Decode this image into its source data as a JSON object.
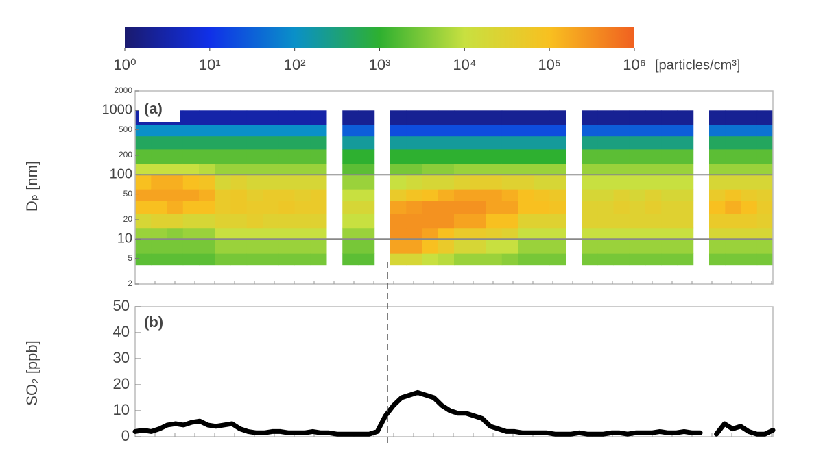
{
  "chart_data": [
    {
      "type": "heatmap",
      "panel_label": "(a)",
      "y_label": "Dₚ [nm]",
      "ylog": true,
      "ylim": [
        2,
        2000
      ],
      "yticks": [
        2,
        5,
        10,
        20,
        50,
        100,
        200,
        500,
        1000,
        2000
      ],
      "reference_lines": [
        10,
        100
      ],
      "ybins": [
        4,
        6,
        10,
        15,
        25,
        40,
        60,
        100,
        150,
        250,
        400,
        600,
        1000
      ],
      "values": [
        [
          2000.0,
          3000.0,
          5000.0,
          20000.0,
          100000.0,
          200000.0,
          100000.0,
          10000.0,
          2000.0,
          500.0,
          100.0,
          3
        ],
        [
          2000.0,
          3000.0,
          5000.0,
          30000.0,
          100000.0,
          200000.0,
          150000.0,
          10000.0,
          2000.0,
          500.0,
          100.0,
          3
        ],
        [
          2000.0,
          3000.0,
          4000.0,
          30000.0,
          150000.0,
          200000.0,
          150000.0,
          10000.0,
          2000.0,
          500.0,
          100.0,
          3
        ],
        [
          2000.0,
          3000.0,
          5000.0,
          20000.0,
          100000.0,
          200000.0,
          100000.0,
          10000.0,
          2000.0,
          500.0,
          100.0,
          3
        ],
        [
          2000.0,
          3000.0,
          5000.0,
          20000.0,
          100000.0,
          150000.0,
          80000.0,
          8000.0,
          2000.0,
          500.0,
          100.0,
          3
        ],
        [
          3000.0,
          5000.0,
          10000.0,
          30000.0,
          50000.0,
          50000.0,
          20000.0,
          5000.0,
          2000.0,
          500.0,
          100.0,
          3
        ],
        [
          3000.0,
          5000.0,
          10000.0,
          30000.0,
          60000.0,
          60000.0,
          30000.0,
          5000.0,
          2000.0,
          500.0,
          100.0,
          3
        ],
        [
          3000.0,
          5000.0,
          10000.0,
          40000.0,
          50000.0,
          40000.0,
          20000.0,
          5000.0,
          2000.0,
          500.0,
          100.0,
          3
        ],
        [
          3000.0,
          5000.0,
          10000.0,
          30000.0,
          50000.0,
          50000.0,
          20000.0,
          5000.0,
          2000.0,
          500.0,
          100.0,
          3
        ],
        [
          3000.0,
          5000.0,
          10000.0,
          30000.0,
          60000.0,
          50000.0,
          20000.0,
          5000.0,
          2000.0,
          500.0,
          100.0,
          3
        ],
        [
          3000.0,
          5000.0,
          10000.0,
          30000.0,
          50000.0,
          40000.0,
          20000.0,
          5000.0,
          2000.0,
          500.0,
          100.0,
          3
        ],
        [
          3000.0,
          5000.0,
          10000.0,
          30000.0,
          50000.0,
          50000.0,
          20000.0,
          5000.0,
          2000.0,
          500.0,
          100.0,
          3
        ],
        null,
        [
          2000.0,
          3000.0,
          5000.0,
          10000.0,
          20000.0,
          10000.0,
          5000.0,
          2000.0,
          1000.0,
          200.0,
          30.0,
          2
        ],
        [
          2000.0,
          3000.0,
          5000.0,
          10000.0,
          20000.0,
          10000.0,
          5000.0,
          2000.0,
          1000.0,
          200.0,
          30.0,
          2
        ],
        null,
        [
          20000.0,
          200000.0,
          300000.0,
          300000.0,
          200000.0,
          50000.0,
          10000.0,
          3000.0,
          1000.0,
          200.0,
          20.0,
          2
        ],
        [
          20000.0,
          200000.0,
          300000.0,
          300000.0,
          250000.0,
          80000.0,
          15000.0,
          3000.0,
          1000.0,
          200.0,
          20.0,
          2
        ],
        [
          10000.0,
          100000.0,
          200000.0,
          300000.0,
          300000.0,
          100000.0,
          20000.0,
          4000.0,
          1000.0,
          200.0,
          20.0,
          2
        ],
        [
          8000.0,
          50000.0,
          100000.0,
          300000.0,
          300000.0,
          150000.0,
          20000.0,
          4000.0,
          1000.0,
          200.0,
          20.0,
          2
        ],
        [
          5000.0,
          20000.0,
          50000.0,
          200000.0,
          300000.0,
          200000.0,
          30000.0,
          5000.0,
          1000.0,
          200.0,
          20.0,
          2
        ],
        [
          5000.0,
          20000.0,
          50000.0,
          200000.0,
          300000.0,
          200000.0,
          40000.0,
          5000.0,
          1000.0,
          200.0,
          20.0,
          2
        ],
        [
          5000.0,
          10000.0,
          40000.0,
          100000.0,
          200000.0,
          200000.0,
          40000.0,
          5000.0,
          1000.0,
          200.0,
          20.0,
          2
        ],
        [
          4000.0,
          10000.0,
          30000.0,
          100000.0,
          200000.0,
          150000.0,
          30000.0,
          5000.0,
          1000.0,
          200.0,
          20.0,
          2
        ],
        [
          3000.0,
          5000.0,
          10000.0,
          30000.0,
          100000.0,
          100000.0,
          30000.0,
          5000.0,
          1000.0,
          200.0,
          20.0,
          2
        ],
        [
          3000.0,
          5000.0,
          10000.0,
          30000.0,
          100000.0,
          80000.0,
          20000.0,
          5000.0,
          1000.0,
          200.0,
          20.0,
          2
        ],
        [
          3000.0,
          5000.0,
          10000.0,
          30000.0,
          80000.0,
          60000.0,
          20000.0,
          5000.0,
          1000.0,
          200.0,
          20.0,
          2
        ],
        null,
        [
          3000.0,
          5000.0,
          10000.0,
          30000.0,
          30000.0,
          20000.0,
          10000.0,
          5000.0,
          2000.0,
          300.0,
          30.0,
          2
        ],
        [
          3000.0,
          5000.0,
          10000.0,
          30000.0,
          30000.0,
          20000.0,
          10000.0,
          5000.0,
          2000.0,
          300.0,
          30.0,
          2
        ],
        [
          3000.0,
          5000.0,
          10000.0,
          30000.0,
          40000.0,
          30000.0,
          10000.0,
          5000.0,
          2000.0,
          300.0,
          30.0,
          2
        ],
        [
          3000.0,
          5000.0,
          10000.0,
          30000.0,
          30000.0,
          20000.0,
          10000.0,
          5000.0,
          2000.0,
          300.0,
          30.0,
          2
        ],
        [
          3000.0,
          5000.0,
          10000.0,
          30000.0,
          40000.0,
          30000.0,
          10000.0,
          5000.0,
          2000.0,
          300.0,
          30.0,
          2
        ],
        [
          3000.0,
          5000.0,
          10000.0,
          30000.0,
          30000.0,
          20000.0,
          10000.0,
          5000.0,
          2000.0,
          300.0,
          30.0,
          2
        ],
        [
          3000.0,
          5000.0,
          10000.0,
          30000.0,
          30000.0,
          20000.0,
          10000.0,
          5000.0,
          2000.0,
          300.0,
          30.0,
          2
        ],
        null,
        [
          3000.0,
          5000.0,
          20000.0,
          50000.0,
          100000.0,
          50000.0,
          20000.0,
          5000.0,
          2000.0,
          500.0,
          50.0,
          2
        ],
        [
          3000.0,
          5000.0,
          20000.0,
          50000.0,
          150000.0,
          80000.0,
          20000.0,
          5000.0,
          2000.0,
          500.0,
          50.0,
          2
        ],
        [
          3000.0,
          5000.0,
          20000.0,
          50000.0,
          100000.0,
          50000.0,
          20000.0,
          5000.0,
          2000.0,
          500.0,
          50.0,
          2
        ],
        [
          3000.0,
          5000.0,
          20000.0,
          40000.0,
          50000.0,
          40000.0,
          20000.0,
          5000.0,
          2000.0,
          500.0,
          50.0,
          2
        ]
      ],
      "colorbar": {
        "lim": [
          1,
          1000000
        ],
        "log": true,
        "unit": "[particles/cm³]",
        "colormap": [
          "#1a1a6e",
          "#1030e8",
          "#0a90c8",
          "#2eb030",
          "#c8e040",
          "#f8c020",
          "#f06020"
        ],
        "ticks": [
          {
            "value": 1,
            "label": "10⁰"
          },
          {
            "value": 10,
            "label": "10¹"
          },
          {
            "value": 100,
            "label": "10²"
          },
          {
            "value": 1000,
            "label": "10³"
          },
          {
            "value": 10000,
            "label": "10⁴"
          },
          {
            "value": 100000,
            "label": "10⁵"
          },
          {
            "value": 1000000,
            "label": "10⁶"
          }
        ]
      }
    },
    {
      "type": "line",
      "panel_label": "(b)",
      "y_label": "SO₂ [ppb]",
      "color": "#000000",
      "ylim": [
        0,
        50
      ],
      "yticks": [
        0,
        10,
        20,
        30,
        40,
        50
      ],
      "values": [
        2,
        2.5,
        2,
        3,
        4.5,
        5,
        4.5,
        5.5,
        6,
        4.5,
        4,
        4.5,
        5,
        3,
        2,
        1.5,
        1.5,
        2,
        2,
        1.5,
        1.5,
        1.5,
        2,
        1.5,
        1.5,
        1,
        1,
        1,
        1,
        1,
        2,
        8,
        12,
        15,
        16,
        17,
        16,
        15,
        12,
        10,
        9,
        9,
        8,
        7,
        4,
        3,
        2,
        2,
        1.5,
        1.5,
        1.5,
        1.5,
        1,
        1,
        1,
        1.5,
        1,
        1,
        1,
        1.5,
        1.5,
        1,
        1.5,
        1.5,
        1.5,
        2,
        1.5,
        1.5,
        2,
        1.5,
        1.5,
        null,
        1,
        5,
        3,
        4,
        2,
        1,
        1,
        2.5
      ]
    }
  ]
}
